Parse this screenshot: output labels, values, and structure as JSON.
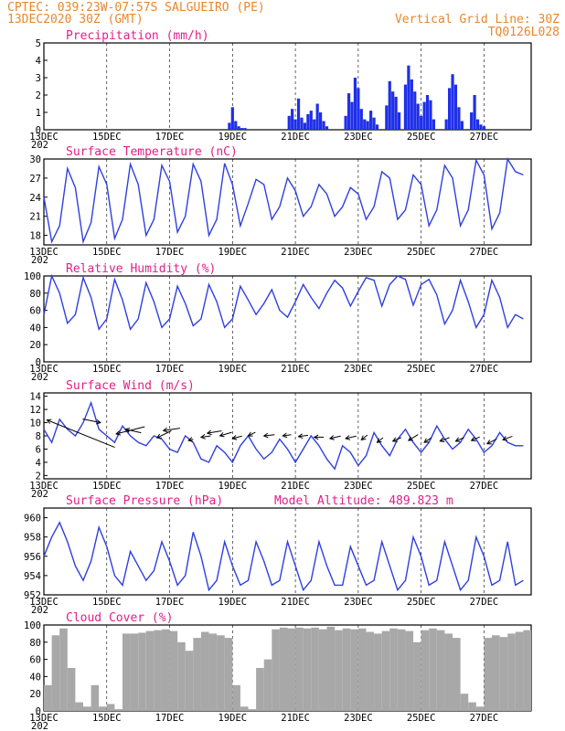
{
  "header": {
    "line1_left": "CPTEC:  039:23W-07:57S  SALGUEIRO (PE)",
    "line2_left": "13DEC2020 30Z (GMT)",
    "line1_right": "Vertical Grid Line: 30Z",
    "line2_right": "TQ0126L028"
  },
  "colors": {
    "header": "#e8872b",
    "panel_title": "#e0208a",
    "series_line": "#2f3fe0",
    "precip_bar": "#1f2fe8",
    "cloud_bar": "#a8a8a8"
  },
  "x_axis": {
    "tick_labels": [
      "13DEC",
      "15DEC",
      "17DEC",
      "19DEC",
      "21DEC",
      "23DEC",
      "25DEC",
      "27DEC"
    ],
    "year_marker": "202"
  },
  "panels": [
    {
      "id": "precip",
      "title": "Precipitation (mm/h)",
      "yticks": [
        "0",
        "1",
        "2",
        "3",
        "4",
        "5"
      ]
    },
    {
      "id": "temp",
      "title": "Surface Temperature (nC)",
      "yticks": [
        "18",
        "21",
        "24",
        "27",
        "30"
      ]
    },
    {
      "id": "rh",
      "title": "Relative Humidity (%)",
      "yticks": [
        "0",
        "20",
        "40",
        "60",
        "80",
        "100"
      ]
    },
    {
      "id": "wind",
      "title": "Surface Wind (m/s)",
      "yticks": [
        "2",
        "4",
        "6",
        "8",
        "10",
        "12",
        "14"
      ]
    },
    {
      "id": "pres",
      "title": "Surface Pressure (hPa)",
      "subtitle": "Model Altitude: 489.823 m",
      "yticks": [
        "952",
        "954",
        "956",
        "958",
        "960"
      ]
    },
    {
      "id": "cloud",
      "title": "Cloud Cover (%)",
      "yticks": [
        "0",
        "20",
        "40",
        "60",
        "80",
        "100"
      ]
    }
  ],
  "chart_data": [
    {
      "type": "bar",
      "title": "Precipitation (mm/h)",
      "ylim": [
        0,
        5
      ],
      "x": [
        5.9,
        6.0,
        6.1,
        6.2,
        6.3,
        6.4,
        7.8,
        7.9,
        8.0,
        8.1,
        8.2,
        8.3,
        8.4,
        8.5,
        8.6,
        8.7,
        8.8,
        8.9,
        9.0,
        9.6,
        9.7,
        9.8,
        9.9,
        10.0,
        10.1,
        10.2,
        10.3,
        10.4,
        10.5,
        10.6,
        10.9,
        11.0,
        11.1,
        11.2,
        11.3,
        11.5,
        11.6,
        11.7,
        11.8,
        11.9,
        12.0,
        12.1,
        12.2,
        12.3,
        12.4,
        12.8,
        12.9,
        13.0,
        13.1,
        13.2,
        13.3,
        13.6,
        13.7,
        13.8,
        13.9,
        14.0
      ],
      "values": [
        0.4,
        1.3,
        0.5,
        0.2,
        0.1,
        0.1,
        0.8,
        1.2,
        0.6,
        1.8,
        0.7,
        0.4,
        0.9,
        1.1,
        0.6,
        1.5,
        1.0,
        0.5,
        0.2,
        0.8,
        2.1,
        1.6,
        3.0,
        2.4,
        1.2,
        0.6,
        0.5,
        1.1,
        0.7,
        0.3,
        1.4,
        2.8,
        2.2,
        1.9,
        1.0,
        2.6,
        3.7,
        2.9,
        2.2,
        1.5,
        0.8,
        1.6,
        2.0,
        1.7,
        0.6,
        0.6,
        2.4,
        3.2,
        2.6,
        1.3,
        0.5,
        1.0,
        2.0,
        0.6,
        0.3,
        0.2
      ]
    },
    {
      "type": "line",
      "title": "Surface Temperature (nC)",
      "ylim": [
        16.5,
        30
      ],
      "x": [
        0.0,
        0.25,
        0.5,
        0.75,
        1.0,
        1.25,
        1.5,
        1.75,
        2.0,
        2.25,
        2.5,
        2.75,
        3.0,
        3.25,
        3.5,
        3.75,
        4.0,
        4.25,
        4.5,
        4.75,
        5.0,
        5.25,
        5.5,
        5.75,
        6.0,
        6.25,
        6.5,
        6.75,
        7.0,
        7.25,
        7.5,
        7.75,
        8.0,
        8.25,
        8.5,
        8.75,
        9.0,
        9.25,
        9.5,
        9.75,
        10.0,
        10.25,
        10.5,
        10.75,
        11.0,
        11.25,
        11.5,
        11.75,
        12.0,
        12.25,
        12.5,
        12.75,
        13.0,
        13.25,
        13.5,
        13.75,
        14.0,
        14.25,
        14.5,
        14.75,
        15.0,
        15.25
      ],
      "values": [
        24.0,
        17.0,
        19.5,
        28.5,
        25.5,
        17.0,
        20.0,
        28.8,
        26.0,
        17.5,
        20.5,
        29.2,
        26.0,
        18.0,
        20.5,
        29.0,
        26.5,
        18.5,
        21.0,
        29.2,
        26.5,
        18.0,
        20.5,
        29.3,
        26.0,
        19.5,
        23.0,
        26.8,
        26.0,
        20.5,
        22.5,
        27.0,
        25.0,
        21.0,
        22.5,
        26.0,
        24.5,
        21.0,
        22.5,
        25.5,
        24.5,
        20.5,
        22.5,
        28.0,
        27.0,
        20.5,
        22.0,
        27.5,
        26.0,
        19.5,
        22.0,
        29.0,
        27.0,
        19.5,
        22.0,
        29.8,
        27.5,
        19.0,
        21.5,
        30.0,
        28.0,
        27.5
      ]
    },
    {
      "type": "line",
      "title": "Relative Humidity (%)",
      "ylim": [
        0,
        100
      ],
      "x": [
        0.0,
        0.25,
        0.5,
        0.75,
        1.0,
        1.25,
        1.5,
        1.75,
        2.0,
        2.25,
        2.5,
        2.75,
        3.0,
        3.25,
        3.5,
        3.75,
        4.0,
        4.25,
        4.5,
        4.75,
        5.0,
        5.25,
        5.5,
        5.75,
        6.0,
        6.25,
        6.5,
        6.75,
        7.0,
        7.25,
        7.5,
        7.75,
        8.0,
        8.25,
        8.5,
        8.75,
        9.0,
        9.25,
        9.5,
        9.75,
        10.0,
        10.25,
        10.5,
        10.75,
        11.0,
        11.25,
        11.5,
        11.75,
        12.0,
        12.25,
        12.5,
        12.75,
        13.0,
        13.25,
        13.5,
        13.75,
        14.0,
        14.25,
        14.5,
        14.75,
        15.0,
        15.25
      ],
      "values": [
        55,
        100,
        80,
        45,
        55,
        98,
        75,
        38,
        50,
        96,
        72,
        38,
        50,
        92,
        70,
        40,
        50,
        88,
        68,
        42,
        50,
        90,
        70,
        40,
        50,
        88,
        72,
        55,
        68,
        84,
        60,
        52,
        70,
        90,
        75,
        62,
        80,
        95,
        86,
        65,
        82,
        98,
        95,
        65,
        90,
        100,
        96,
        66,
        90,
        96,
        78,
        44,
        60,
        95,
        70,
        40,
        55,
        95,
        75,
        40,
        55,
        50
      ]
    },
    {
      "type": "line",
      "title": "Surface Wind (m/s)",
      "ylim": [
        1.5,
        14.5
      ],
      "x": [
        0.0,
        0.25,
        0.5,
        0.75,
        1.0,
        1.25,
        1.5,
        1.75,
        2.0,
        2.25,
        2.5,
        2.75,
        3.0,
        3.25,
        3.5,
        3.75,
        4.0,
        4.25,
        4.5,
        4.75,
        5.0,
        5.25,
        5.5,
        5.75,
        6.0,
        6.25,
        6.5,
        6.75,
        7.0,
        7.25,
        7.5,
        7.75,
        8.0,
        8.25,
        8.5,
        8.75,
        9.0,
        9.25,
        9.5,
        9.75,
        10.0,
        10.25,
        10.5,
        10.75,
        11.0,
        11.25,
        11.5,
        11.75,
        12.0,
        12.25,
        12.5,
        12.75,
        13.0,
        13.25,
        13.5,
        13.75,
        14.0,
        14.25,
        14.5,
        14.75,
        15.0,
        15.25
      ],
      "values": [
        9.0,
        7.0,
        10.5,
        9.0,
        8.0,
        10.0,
        13.0,
        9.0,
        8.0,
        7.0,
        9.5,
        8.0,
        7.0,
        6.5,
        8.0,
        7.5,
        6.0,
        5.5,
        8.0,
        7.0,
        4.5,
        4.0,
        6.5,
        5.5,
        4.0,
        6.5,
        8.0,
        6.0,
        4.5,
        5.5,
        7.5,
        6.0,
        4.0,
        6.0,
        8.0,
        6.5,
        4.5,
        3.0,
        6.5,
        5.5,
        3.5,
        5.0,
        8.5,
        6.5,
        5.0,
        7.5,
        9.0,
        7.0,
        5.5,
        7.0,
        9.5,
        7.5,
        6.0,
        7.0,
        9.0,
        7.5,
        5.5,
        6.5,
        8.5,
        7.0,
        6.5,
        6.5
      ],
      "arrows": [
        {
          "x": 0.1,
          "y": 10.4,
          "u": 5.7,
          "v": -2.3
        },
        {
          "x": 1.8,
          "y": 10.0,
          "u": -1.5,
          "v": 0.3
        },
        {
          "x": 2.6,
          "y": 9.0,
          "u": 1.3,
          "v": -0.3
        },
        {
          "x": 2.3,
          "y": 8.3,
          "u": 2.4,
          "v": 0.6
        },
        {
          "x": 3.6,
          "y": 7.7,
          "u": 1.2,
          "v": 0.6
        },
        {
          "x": 3.8,
          "y": 8.8,
          "u": 1.4,
          "v": 0.2
        },
        {
          "x": 4.6,
          "y": 7.3,
          "u": 0.4,
          "v": 0.1
        },
        {
          "x": 5.0,
          "y": 7.8,
          "u": 0.8,
          "v": 0.1
        },
        {
          "x": 5.2,
          "y": 8.4,
          "u": 1.2,
          "v": 0.2
        },
        {
          "x": 5.6,
          "y": 8.0,
          "u": 1.0,
          "v": 0.3
        },
        {
          "x": 6.0,
          "y": 7.6,
          "u": 0.8,
          "v": 0.2
        },
        {
          "x": 6.5,
          "y": 8.0,
          "u": 0.6,
          "v": 0.3
        },
        {
          "x": 7.0,
          "y": 8.0,
          "u": 0.9,
          "v": 0.1
        },
        {
          "x": 7.6,
          "y": 8.0,
          "u": 0.7,
          "v": 0.1
        },
        {
          "x": 8.1,
          "y": 7.9,
          "u": 0.8,
          "v": 0.1
        },
        {
          "x": 8.6,
          "y": 7.8,
          "u": 0.8,
          "v": 0.0
        },
        {
          "x": 9.1,
          "y": 7.6,
          "u": 0.9,
          "v": 0.2
        },
        {
          "x": 9.6,
          "y": 7.6,
          "u": 0.9,
          "v": 0.2
        },
        {
          "x": 10.1,
          "y": 7.4,
          "u": 0.5,
          "v": 0.4
        },
        {
          "x": 10.6,
          "y": 7.0,
          "u": 0.5,
          "v": 0.4
        },
        {
          "x": 11.1,
          "y": 7.2,
          "u": 0.7,
          "v": 0.3
        },
        {
          "x": 11.6,
          "y": 7.3,
          "u": 0.8,
          "v": 0.5
        },
        {
          "x": 12.1,
          "y": 7.0,
          "u": 0.6,
          "v": 0.4
        },
        {
          "x": 12.6,
          "y": 7.2,
          "u": 0.8,
          "v": 0.3
        },
        {
          "x": 13.1,
          "y": 7.2,
          "u": 0.7,
          "v": 0.3
        },
        {
          "x": 13.6,
          "y": 7.3,
          "u": 0.7,
          "v": 0.3
        },
        {
          "x": 14.1,
          "y": 6.8,
          "u": 0.8,
          "v": 0.4
        },
        {
          "x": 14.6,
          "y": 7.4,
          "u": 0.8,
          "v": 0.3
        }
      ]
    },
    {
      "type": "line",
      "title": "Surface Pressure (hPa)",
      "ylim": [
        952,
        961
      ],
      "x": [
        0.0,
        0.25,
        0.5,
        0.75,
        1.0,
        1.25,
        1.5,
        1.75,
        2.0,
        2.25,
        2.5,
        2.75,
        3.0,
        3.25,
        3.5,
        3.75,
        4.0,
        4.25,
        4.5,
        4.75,
        5.0,
        5.25,
        5.5,
        5.75,
        6.0,
        6.25,
        6.5,
        6.75,
        7.0,
        7.25,
        7.5,
        7.75,
        8.0,
        8.25,
        8.5,
        8.75,
        9.0,
        9.25,
        9.5,
        9.75,
        10.0,
        10.25,
        10.5,
        10.75,
        11.0,
        11.25,
        11.5,
        11.75,
        12.0,
        12.25,
        12.5,
        12.75,
        13.0,
        13.25,
        13.5,
        13.75,
        14.0,
        14.25,
        14.5,
        14.75,
        15.0,
        15.25
      ],
      "values": [
        956.0,
        958.0,
        959.5,
        957.5,
        955.0,
        953.5,
        955.5,
        959.0,
        957.0,
        954.0,
        953.0,
        956.5,
        955.0,
        953.5,
        954.5,
        957.5,
        955.5,
        953.0,
        954.0,
        958.5,
        956.0,
        952.5,
        953.5,
        957.5,
        955.0,
        953.0,
        953.5,
        957.5,
        955.5,
        953.0,
        953.5,
        957.5,
        955.0,
        952.5,
        953.5,
        957.5,
        955.0,
        953.0,
        953.0,
        957.0,
        955.0,
        953.0,
        953.5,
        957.5,
        955.0,
        952.5,
        953.5,
        958.0,
        956.0,
        953.0,
        953.5,
        957.5,
        955.0,
        952.5,
        953.5,
        958.0,
        956.0,
        953.0,
        953.5,
        957.5,
        953.0,
        953.5
      ]
    },
    {
      "type": "area",
      "title": "Cloud Cover (%)",
      "ylim": [
        0,
        100
      ],
      "x": [
        0.0,
        0.25,
        0.5,
        0.75,
        1.0,
        1.25,
        1.5,
        1.75,
        2.0,
        2.25,
        2.5,
        2.75,
        3.0,
        3.25,
        3.5,
        3.75,
        4.0,
        4.25,
        4.5,
        4.75,
        5.0,
        5.25,
        5.5,
        5.75,
        6.0,
        6.25,
        6.5,
        6.75,
        7.0,
        7.25,
        7.5,
        7.75,
        8.0,
        8.25,
        8.5,
        8.75,
        9.0,
        9.25,
        9.5,
        9.75,
        10.0,
        10.25,
        10.5,
        10.75,
        11.0,
        11.25,
        11.5,
        11.75,
        12.0,
        12.25,
        12.5,
        12.75,
        13.0,
        13.25,
        13.5,
        13.75,
        14.0,
        14.25,
        14.5,
        14.75,
        15.0,
        15.25
      ],
      "values": [
        30,
        88,
        96,
        50,
        10,
        5,
        30,
        5,
        8,
        2,
        90,
        90,
        91,
        93,
        94,
        95,
        93,
        80,
        70,
        85,
        92,
        90,
        88,
        85,
        30,
        5,
        2,
        50,
        60,
        95,
        97,
        96,
        97,
        96,
        97,
        95,
        98,
        94,
        96,
        95,
        96,
        92,
        90,
        93,
        96,
        95,
        93,
        80,
        94,
        96,
        94,
        90,
        85,
        20,
        10,
        5,
        85,
        88,
        86,
        90,
        92,
        94
      ]
    }
  ]
}
